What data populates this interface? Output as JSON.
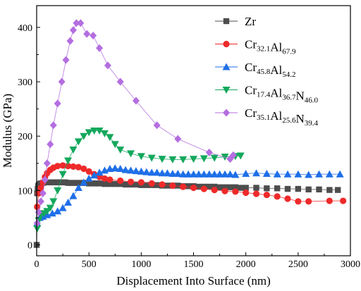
{
  "chart_data": {
    "type": "scatter",
    "xlabel": "Displacement Into Surface (nm)",
    "ylabel": "Modulus (GPa)",
    "xlim": [
      0,
      3000
    ],
    "ylim": [
      -20,
      440
    ],
    "xticks": [
      "0",
      "500",
      "1000",
      "1500",
      "2000",
      "2500",
      "3000"
    ],
    "yticks": [
      "0",
      "100",
      "200",
      "300",
      "400"
    ],
    "grid": false,
    "legend_position": "top-right",
    "series": [
      {
        "name": "Zr",
        "legend_base": [
          "Zr"
        ],
        "legend_sub": [
          ""
        ],
        "color": "#4d4d4d",
        "marker": "square",
        "points": [
          [
            0,
            0
          ],
          [
            5,
            95
          ],
          [
            10,
            103
          ],
          [
            15,
            108
          ],
          [
            20,
            110
          ],
          [
            30,
            112
          ],
          [
            40,
            113
          ],
          [
            60,
            114
          ],
          [
            80,
            115
          ],
          [
            100,
            115
          ],
          [
            125,
            115
          ],
          [
            150,
            115
          ],
          [
            175,
            115
          ],
          [
            200,
            115
          ],
          [
            225,
            115
          ],
          [
            250,
            115
          ],
          [
            275,
            115
          ],
          [
            300,
            114
          ],
          [
            325,
            114
          ],
          [
            350,
            114
          ],
          [
            375,
            114
          ],
          [
            400,
            114
          ],
          [
            425,
            114
          ],
          [
            450,
            114
          ],
          [
            475,
            114
          ],
          [
            500,
            113
          ],
          [
            525,
            113
          ],
          [
            550,
            113
          ],
          [
            575,
            113
          ],
          [
            600,
            113
          ],
          [
            650,
            112
          ],
          [
            700,
            112
          ],
          [
            750,
            112
          ],
          [
            800,
            112
          ],
          [
            850,
            111
          ],
          [
            900,
            111
          ],
          [
            950,
            111
          ],
          [
            1000,
            110
          ],
          [
            1050,
            110
          ],
          [
            1100,
            110
          ],
          [
            1150,
            110
          ],
          [
            1200,
            109
          ],
          [
            1250,
            109
          ],
          [
            1300,
            109
          ],
          [
            1350,
            109
          ],
          [
            1400,
            108
          ],
          [
            1450,
            108
          ],
          [
            1500,
            108
          ],
          [
            1550,
            107
          ],
          [
            1600,
            107
          ],
          [
            1650,
            107
          ],
          [
            1700,
            107
          ],
          [
            1750,
            106
          ],
          [
            1800,
            106
          ],
          [
            1850,
            106
          ],
          [
            1900,
            106
          ],
          [
            1950,
            105
          ],
          [
            2000,
            105
          ],
          [
            2100,
            105
          ],
          [
            2200,
            104
          ],
          [
            2300,
            104
          ],
          [
            2400,
            103
          ],
          [
            2500,
            103
          ],
          [
            2600,
            102
          ],
          [
            2700,
            102
          ],
          [
            2800,
            101
          ],
          [
            2880,
            101
          ]
        ]
      },
      {
        "name": "Cr32.1Al67.9",
        "legend_base": [
          "Cr",
          "Al"
        ],
        "legend_sub": [
          "32.1",
          "67.9"
        ],
        "color": "#ee2a2a",
        "marker": "circle",
        "points": [
          [
            5,
            70
          ],
          [
            20,
            95
          ],
          [
            40,
            105
          ],
          [
            60,
            115
          ],
          [
            80,
            125
          ],
          [
            100,
            132
          ],
          [
            130,
            138
          ],
          [
            160,
            142
          ],
          [
            200,
            145
          ],
          [
            250,
            146
          ],
          [
            300,
            145
          ],
          [
            350,
            144
          ],
          [
            400,
            143
          ],
          [
            450,
            140
          ],
          [
            500,
            135
          ],
          [
            550,
            130
          ],
          [
            600,
            125
          ],
          [
            650,
            122
          ],
          [
            700,
            120
          ],
          [
            800,
            118
          ],
          [
            900,
            116
          ],
          [
            1000,
            115
          ],
          [
            1100,
            113
          ],
          [
            1200,
            111
          ],
          [
            1300,
            109
          ],
          [
            1400,
            107
          ],
          [
            1500,
            105
          ],
          [
            1600,
            103
          ],
          [
            1700,
            101
          ],
          [
            1800,
            99
          ],
          [
            1900,
            98
          ],
          [
            2000,
            96
          ],
          [
            2100,
            94
          ],
          [
            2200,
            92
          ],
          [
            2300,
            89
          ],
          [
            2400,
            85
          ],
          [
            2500,
            80
          ],
          [
            2600,
            80
          ],
          [
            2800,
            81
          ],
          [
            2930,
            81
          ]
        ]
      },
      {
        "name": "Cr45.8Al54.2",
        "legend_base": [
          "Cr",
          "Al"
        ],
        "legend_sub": [
          "45.8",
          "54.2"
        ],
        "color": "#1e6fe8",
        "marker": "triangle-up",
        "points": [
          [
            5,
            40
          ],
          [
            30,
            50
          ],
          [
            60,
            52
          ],
          [
            100,
            55
          ],
          [
            150,
            58
          ],
          [
            200,
            62
          ],
          [
            250,
            68
          ],
          [
            300,
            78
          ],
          [
            350,
            90
          ],
          [
            400,
            105
          ],
          [
            450,
            115
          ],
          [
            500,
            122
          ],
          [
            550,
            128
          ],
          [
            600,
            133
          ],
          [
            650,
            137
          ],
          [
            700,
            140
          ],
          [
            750,
            141
          ],
          [
            800,
            140
          ],
          [
            850,
            138
          ],
          [
            900,
            137
          ],
          [
            950,
            136
          ],
          [
            1000,
            135
          ],
          [
            1050,
            134
          ],
          [
            1100,
            133
          ],
          [
            1150,
            133
          ],
          [
            1200,
            132
          ],
          [
            1250,
            132
          ],
          [
            1300,
            131
          ],
          [
            1350,
            131
          ],
          [
            1400,
            130
          ],
          [
            1450,
            130
          ],
          [
            1500,
            130
          ],
          [
            1550,
            130
          ],
          [
            1600,
            130
          ],
          [
            1650,
            130
          ],
          [
            1700,
            130
          ],
          [
            1750,
            130
          ],
          [
            1800,
            130
          ],
          [
            1850,
            130
          ],
          [
            1900,
            129
          ],
          [
            2000,
            131
          ],
          [
            2100,
            132
          ],
          [
            2200,
            131
          ],
          [
            2300,
            130
          ],
          [
            2400,
            130
          ],
          [
            2500,
            130
          ],
          [
            2600,
            129
          ],
          [
            2700,
            130
          ],
          [
            2800,
            130
          ],
          [
            2900,
            130
          ]
        ]
      },
      {
        "name": "Cr17.4Al36.7N46.0",
        "legend_base": [
          "Cr",
          "Al",
          "N"
        ],
        "legend_sub": [
          "17.4",
          "36.7",
          "46.0"
        ],
        "color": "#13a85c",
        "marker": "triangle-down",
        "points": [
          [
            5,
            30
          ],
          [
            20,
            45
          ],
          [
            40,
            55
          ],
          [
            70,
            58
          ],
          [
            100,
            62
          ],
          [
            130,
            68
          ],
          [
            160,
            80
          ],
          [
            200,
            100
          ],
          [
            250,
            130
          ],
          [
            300,
            155
          ],
          [
            350,
            175
          ],
          [
            400,
            190
          ],
          [
            450,
            200
          ],
          [
            500,
            207
          ],
          [
            550,
            210
          ],
          [
            600,
            210
          ],
          [
            650,
            205
          ],
          [
            700,
            198
          ],
          [
            750,
            185
          ],
          [
            800,
            175
          ],
          [
            900,
            168
          ],
          [
            1000,
            163
          ],
          [
            1100,
            160
          ],
          [
            1200,
            158
          ],
          [
            1300,
            157
          ],
          [
            1400,
            157
          ],
          [
            1500,
            158
          ],
          [
            1600,
            159
          ],
          [
            1700,
            160
          ],
          [
            1800,
            162
          ],
          [
            1900,
            163
          ],
          [
            1950,
            164
          ]
        ]
      },
      {
        "name": "Cr35.1Al25.6N39.4",
        "legend_base": [
          "Cr",
          "Al",
          "N"
        ],
        "legend_sub": [
          "35.1",
          "25.6",
          "39.4"
        ],
        "color": "#b46ee0",
        "marker": "diamond",
        "points": [
          [
            5,
            40
          ],
          [
            20,
            60
          ],
          [
            40,
            80
          ],
          [
            60,
            95
          ],
          [
            80,
            120
          ],
          [
            100,
            150
          ],
          [
            130,
            185
          ],
          [
            160,
            220
          ],
          [
            200,
            260
          ],
          [
            240,
            300
          ],
          [
            280,
            340
          ],
          [
            320,
            375
          ],
          [
            350,
            395
          ],
          [
            380,
            408
          ],
          [
            420,
            408
          ],
          [
            480,
            388
          ],
          [
            540,
            385
          ],
          [
            600,
            362
          ],
          [
            680,
            330
          ],
          [
            800,
            300
          ],
          [
            950,
            265
          ],
          [
            1150,
            220
          ],
          [
            1350,
            195
          ],
          [
            1650,
            170
          ],
          [
            1850,
            158
          ],
          [
            1880,
            165
          ]
        ]
      }
    ]
  }
}
